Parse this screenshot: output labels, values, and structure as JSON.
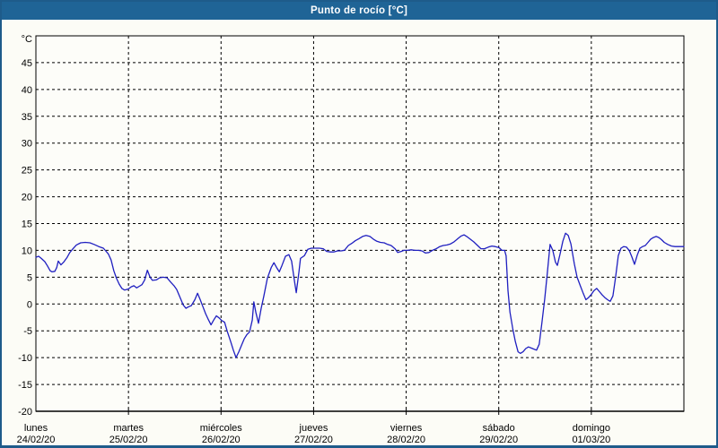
{
  "window": {
    "title": "Punto de rocío [°C]"
  },
  "colors": {
    "titlebar_bg": "#1f6496",
    "titlebar_text": "#ffffff",
    "frame_border": "#1e5b8a",
    "panel_bg": "#fcfcf6",
    "plot_bg": "#fdfdf9",
    "grid": "#000000",
    "axis": "#000000",
    "label_text": "#000000",
    "line": "#1f1fc0"
  },
  "chart_data": {
    "type": "line",
    "title": "Punto de rocío [°C]",
    "xlabel": "",
    "ylabel": "°C",
    "y_unit_label": "°C",
    "ylim": [
      -20,
      50
    ],
    "y_tick_step": 5,
    "y_ticks": [
      45,
      40,
      35,
      30,
      25,
      20,
      15,
      10,
      5,
      0,
      -5,
      -10,
      -15,
      -20
    ],
    "grid": "dashed",
    "legend_position": "none",
    "x_hours_total": 168,
    "x_days": [
      {
        "name": "lunes",
        "date": "24/02/20"
      },
      {
        "name": "martes",
        "date": "25/02/20"
      },
      {
        "name": "miércoles",
        "date": "26/02/20"
      },
      {
        "name": "jueves",
        "date": "27/02/20"
      },
      {
        "name": "viernes",
        "date": "28/02/20"
      },
      {
        "name": "sábado",
        "date": "29/02/20"
      },
      {
        "name": "domingo",
        "date": "01/03/20"
      }
    ],
    "series": [
      {
        "name": "Punto de rocío",
        "color": "#1f1fc0",
        "points": [
          [
            0,
            8.7
          ],
          [
            0.7,
            8.9
          ],
          [
            1.4,
            8.5
          ],
          [
            2.3,
            7.9
          ],
          [
            3,
            7.1
          ],
          [
            3.7,
            6.2
          ],
          [
            4.2,
            6
          ],
          [
            4.9,
            6.1
          ],
          [
            5.4,
            6.8
          ],
          [
            5.8,
            8
          ],
          [
            6.5,
            7.3
          ],
          [
            7.2,
            7.8
          ],
          [
            8.1,
            8.7
          ],
          [
            8.8,
            9.6
          ],
          [
            9.5,
            10.2
          ],
          [
            10.5,
            11
          ],
          [
            11.6,
            11.4
          ],
          [
            12.8,
            11.5
          ],
          [
            14,
            11.4
          ],
          [
            15.1,
            11.1
          ],
          [
            16.3,
            10.7
          ],
          [
            17.5,
            10.4
          ],
          [
            18.1,
            9.9
          ],
          [
            18.8,
            9.3
          ],
          [
            19.5,
            8.2
          ],
          [
            20.2,
            6.2
          ],
          [
            20.9,
            4.8
          ],
          [
            21.6,
            3.7
          ],
          [
            22.3,
            2.9
          ],
          [
            23,
            2.6
          ],
          [
            24,
            2.8
          ],
          [
            24.7,
            3.2
          ],
          [
            25.4,
            3.4
          ],
          [
            26.1,
            3
          ],
          [
            26.8,
            3.3
          ],
          [
            27.5,
            3.6
          ],
          [
            28.2,
            4.5
          ],
          [
            28.9,
            6.3
          ],
          [
            29.6,
            5
          ],
          [
            30.2,
            4.4
          ],
          [
            31.2,
            4.5
          ],
          [
            32.1,
            4.9
          ],
          [
            33,
            5
          ],
          [
            34,
            4.9
          ],
          [
            34.9,
            4.1
          ],
          [
            35.8,
            3.4
          ],
          [
            36.5,
            2.7
          ],
          [
            37.2,
            1.5
          ],
          [
            38.2,
            -0.2
          ],
          [
            38.9,
            -0.8
          ],
          [
            39.6,
            -0.5
          ],
          [
            40.3,
            -0.3
          ],
          [
            41.2,
            0.8
          ],
          [
            41.9,
            2
          ],
          [
            42.6,
            0.8
          ],
          [
            43.3,
            -0.5
          ],
          [
            44,
            -1.8
          ],
          [
            44.7,
            -2.9
          ],
          [
            45.4,
            -3.9
          ],
          [
            46.1,
            -3
          ],
          [
            46.8,
            -2.2
          ],
          [
            47.5,
            -2.6
          ],
          [
            48.2,
            -3.1
          ],
          [
            48.9,
            -3.4
          ],
          [
            49.6,
            -5.1
          ],
          [
            50.5,
            -7
          ],
          [
            51.2,
            -8.6
          ],
          [
            51.9,
            -10
          ],
          [
            52.6,
            -8.9
          ],
          [
            53.3,
            -7.7
          ],
          [
            54,
            -6.5
          ],
          [
            54.7,
            -5.7
          ],
          [
            55.4,
            -5.2
          ],
          [
            56.1,
            -3
          ],
          [
            56.5,
            0.4
          ],
          [
            57,
            -1.5
          ],
          [
            57.7,
            -3.6
          ],
          [
            58.4,
            -0.8
          ],
          [
            59.1,
            1.5
          ],
          [
            60,
            4.8
          ],
          [
            61,
            6.8
          ],
          [
            61.7,
            7.7
          ],
          [
            62.4,
            6.8
          ],
          [
            63.1,
            6
          ],
          [
            63.8,
            7.2
          ],
          [
            64.7,
            8.9
          ],
          [
            65.6,
            9.2
          ],
          [
            66.3,
            8
          ],
          [
            67,
            4.5
          ],
          [
            67.5,
            2.1
          ],
          [
            68.2,
            6
          ],
          [
            68.6,
            8.5
          ],
          [
            69.6,
            9
          ],
          [
            70.5,
            10.2
          ],
          [
            71.4,
            10.4
          ],
          [
            72.4,
            10.4
          ],
          [
            73.5,
            10.4
          ],
          [
            74.5,
            10.3
          ],
          [
            75.4,
            9.8
          ],
          [
            76.3,
            9.7
          ],
          [
            77.2,
            9.7
          ],
          [
            78.2,
            9.9
          ],
          [
            79.1,
            9.9
          ],
          [
            80,
            10
          ],
          [
            81,
            10.9
          ],
          [
            81.9,
            11.3
          ],
          [
            82.8,
            11.8
          ],
          [
            83.8,
            12.2
          ],
          [
            84.7,
            12.6
          ],
          [
            85.6,
            12.8
          ],
          [
            86.6,
            12.6
          ],
          [
            87.5,
            12.1
          ],
          [
            88.4,
            11.7
          ],
          [
            89.3,
            11.5
          ],
          [
            90.3,
            11.4
          ],
          [
            91.2,
            11.1
          ],
          [
            92.1,
            10.9
          ],
          [
            93.1,
            10.3
          ],
          [
            93.8,
            9.6
          ],
          [
            94.7,
            9.8
          ],
          [
            95.4,
            10
          ],
          [
            96.3,
            10
          ],
          [
            97.3,
            10.1
          ],
          [
            98.2,
            10
          ],
          [
            99.1,
            10
          ],
          [
            100.1,
            9.9
          ],
          [
            101,
            9.5
          ],
          [
            101.9,
            9.6
          ],
          [
            102.8,
            10
          ],
          [
            103.8,
            10.3
          ],
          [
            104.7,
            10.7
          ],
          [
            105.6,
            10.9
          ],
          [
            106.6,
            11
          ],
          [
            107.5,
            11.2
          ],
          [
            108.4,
            11.6
          ],
          [
            109.4,
            12.2
          ],
          [
            110.3,
            12.7
          ],
          [
            111,
            12.9
          ],
          [
            111.7,
            12.6
          ],
          [
            112.6,
            12.1
          ],
          [
            113.5,
            11.6
          ],
          [
            114.5,
            10.9
          ],
          [
            115.4,
            10.3
          ],
          [
            116.3,
            10.3
          ],
          [
            117.3,
            10.6
          ],
          [
            118.2,
            10.8
          ],
          [
            119.1,
            10.7
          ],
          [
            120.1,
            10.5
          ],
          [
            120.8,
            10
          ],
          [
            121.5,
            10
          ],
          [
            121.9,
            9
          ],
          [
            122.4,
            2.5
          ],
          [
            122.9,
            -1.5
          ],
          [
            123.6,
            -4.5
          ],
          [
            124.3,
            -7
          ],
          [
            125,
            -8.9
          ],
          [
            125.6,
            -9.2
          ],
          [
            126.3,
            -8.9
          ],
          [
            127,
            -8.3
          ],
          [
            127.7,
            -8
          ],
          [
            128.4,
            -8.2
          ],
          [
            129.1,
            -8.4
          ],
          [
            129.8,
            -8.6
          ],
          [
            130.5,
            -7.5
          ],
          [
            131.2,
            -3.5
          ],
          [
            131.9,
            0.9
          ],
          [
            132.6,
            5.9
          ],
          [
            133.3,
            11.1
          ],
          [
            134,
            10
          ],
          [
            134.7,
            7.8
          ],
          [
            135.2,
            7.2
          ],
          [
            135.9,
            9.3
          ],
          [
            136.6,
            11.7
          ],
          [
            137.3,
            13.2
          ],
          [
            138,
            12.8
          ],
          [
            138.7,
            11.2
          ],
          [
            139.6,
            7.5
          ],
          [
            140.3,
            5
          ],
          [
            141.2,
            3.3
          ],
          [
            141.9,
            2
          ],
          [
            142.6,
            0.8
          ],
          [
            143.3,
            1.2
          ],
          [
            144,
            1.8
          ],
          [
            144.7,
            2.5
          ],
          [
            145.4,
            2.9
          ],
          [
            146.1,
            2.3
          ],
          [
            146.8,
            1.7
          ],
          [
            147.5,
            1.2
          ],
          [
            148.2,
            0.8
          ],
          [
            148.9,
            0.5
          ],
          [
            149.6,
            1.5
          ],
          [
            150.3,
            5
          ],
          [
            151,
            9
          ],
          [
            151.7,
            10.4
          ],
          [
            152.4,
            10.7
          ],
          [
            153.1,
            10.6
          ],
          [
            153.8,
            10
          ],
          [
            154.5,
            8.8
          ],
          [
            155.2,
            7.4
          ],
          [
            155.9,
            9.1
          ],
          [
            156.6,
            10.4
          ],
          [
            157.3,
            10.7
          ],
          [
            158,
            10.9
          ],
          [
            158.7,
            11.5
          ],
          [
            159.4,
            12.1
          ],
          [
            160.1,
            12.4
          ],
          [
            160.8,
            12.6
          ],
          [
            161.5,
            12.4
          ],
          [
            162.2,
            12
          ],
          [
            162.9,
            11.5
          ],
          [
            163.8,
            11.1
          ],
          [
            164.8,
            10.8
          ],
          [
            165.7,
            10.7
          ],
          [
            166.6,
            10.7
          ],
          [
            167.6,
            10.7
          ],
          [
            168,
            10.7
          ]
        ]
      }
    ]
  }
}
